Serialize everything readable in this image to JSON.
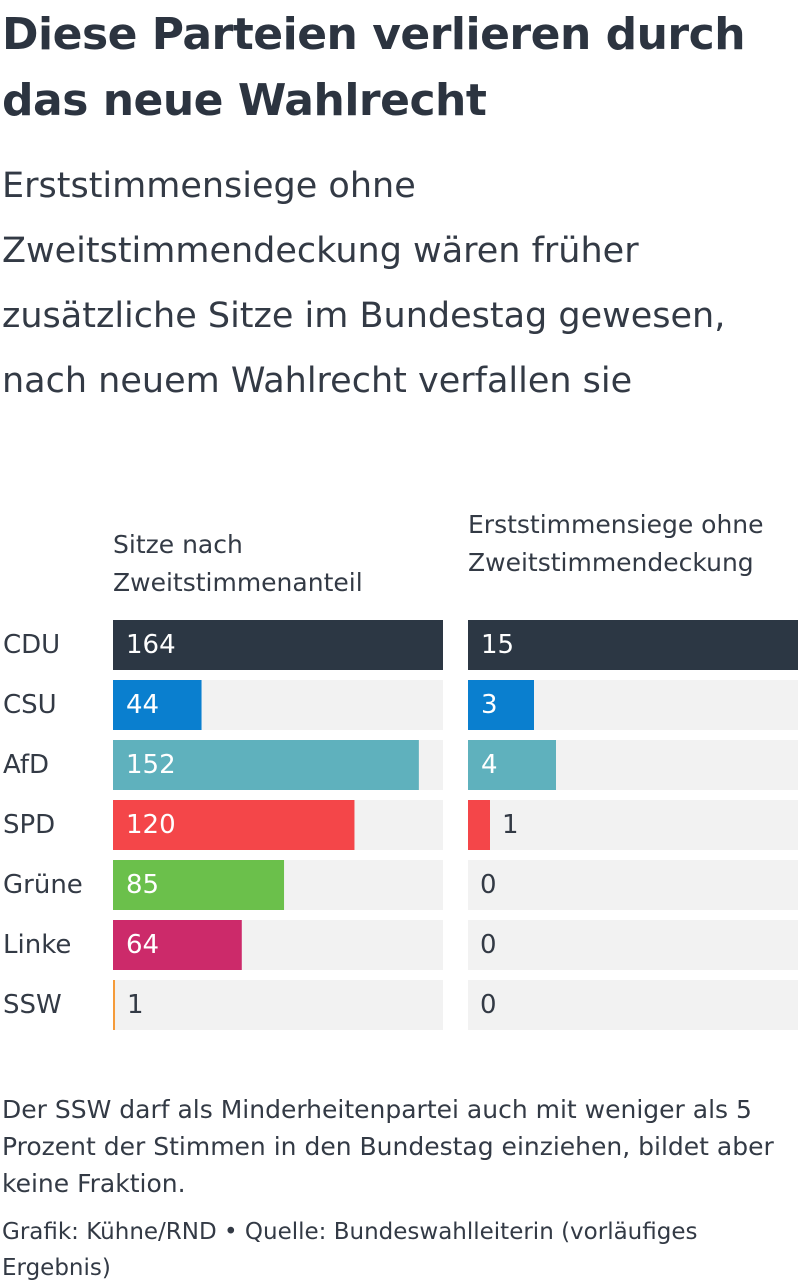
{
  "header": {
    "title": "Diese Parteien verlieren durch das neue Wahlrecht",
    "subtitle": "Erststimmensiege ohne Zweitstimmendeckung wären früher zusätzliche Sitze im Bundestag gewesen, nach neuem Wahlrecht verfallen sie"
  },
  "footer": {
    "note": "Der SSW darf als Minderheitenpartei auch mit weniger als 5 Prozent der Stimmen in den Bundestag einziehen, bildet aber keine Fraktion.",
    "source": "Grafik: Kühne/RND • Quelle: Bundeswahlleiterin (vorläufiges Ergebnis)"
  },
  "colors": {
    "track": "#f2f2f2",
    "label_on_bar": "#ffffff",
    "label_off_bar": "#333a45",
    "CDU": "#2c3744",
    "CSU": "#0a7fcf",
    "AfD": "#5fb1bd",
    "SPD": "#f44649",
    "Grüne": "#6bc04b",
    "Linke": "#cc2a6a",
    "SSW": "#f59b3a"
  },
  "chart_data": {
    "type": "bar",
    "orientation": "horizontal",
    "categories": [
      "CDU",
      "CSU",
      "AfD",
      "SPD",
      "Grüne",
      "Linke",
      "SSW"
    ],
    "series": [
      {
        "name": "Sitze nach Zweitstimmenanteil",
        "values": [
          164,
          44,
          152,
          120,
          85,
          64,
          1
        ],
        "xlim": [
          0,
          164
        ]
      },
      {
        "name": "Erststimmensiege ohne Zweitstimmendeckung",
        "values": [
          15,
          3,
          4,
          1,
          0,
          0,
          0
        ],
        "xlim": [
          0,
          15
        ]
      }
    ],
    "grid": false,
    "legend": "none"
  }
}
